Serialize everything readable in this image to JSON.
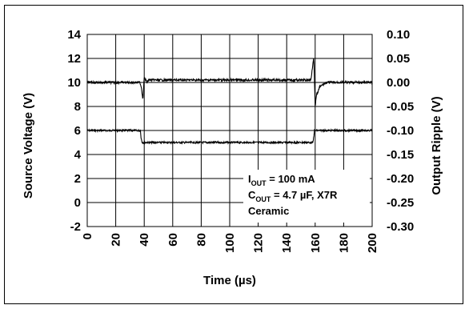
{
  "chart_data": {
    "type": "line",
    "xlabel": "Time (µs)",
    "ylabel_left": "Source Voltage (V)",
    "ylabel_right": "Output Ripple (V)",
    "xlim": [
      0,
      200
    ],
    "ylim_left": [
      -2,
      14
    ],
    "ylim_right": [
      -0.3,
      0.1
    ],
    "x_ticks": [
      "0",
      "20",
      "40",
      "60",
      "80",
      "100",
      "120",
      "140",
      "160",
      "180",
      "200"
    ],
    "y_left_ticks": [
      "14",
      "12",
      "10",
      "8",
      "6",
      "4",
      "2",
      "0",
      "-2"
    ],
    "y_right_ticks": [
      "0.10",
      "0.05",
      "0.00",
      "-0.05",
      "-0.10",
      "-0.15",
      "-0.20",
      "-0.25",
      "-0.30"
    ],
    "grid": true,
    "series": [
      {
        "axis": "left",
        "x": [
          0,
          37.5,
          37.6,
          38.5,
          158.5,
          159.5,
          200
        ],
        "y": [
          6.0,
          6.0,
          5.5,
          5.0,
          5.0,
          6.0,
          6.0
        ]
      },
      {
        "axis": "right",
        "x": [
          0,
          37,
          38,
          39,
          40,
          41,
          42,
          43,
          45,
          50,
          60,
          100,
          150,
          157,
          158,
          159,
          160,
          161,
          162,
          163,
          165,
          168,
          175,
          200
        ],
        "y": [
          0.0,
          0.0,
          -0.01,
          -0.035,
          0.01,
          0.005,
          0.0,
          0.005,
          0.005,
          0.005,
          0.005,
          0.005,
          0.005,
          0.005,
          0.03,
          0.055,
          -0.05,
          -0.025,
          -0.02,
          -0.01,
          -0.005,
          0.0,
          0.0,
          0.0
        ]
      }
    ],
    "annotations": [
      {
        "main": "I",
        "sub": "OUT",
        "rest": " = 100 mA"
      },
      {
        "main": "C",
        "sub": "OUT",
        "rest": " = 4.7 µF, X7R"
      },
      {
        "main": "Ceramic",
        "sub": "",
        "rest": ""
      }
    ]
  }
}
